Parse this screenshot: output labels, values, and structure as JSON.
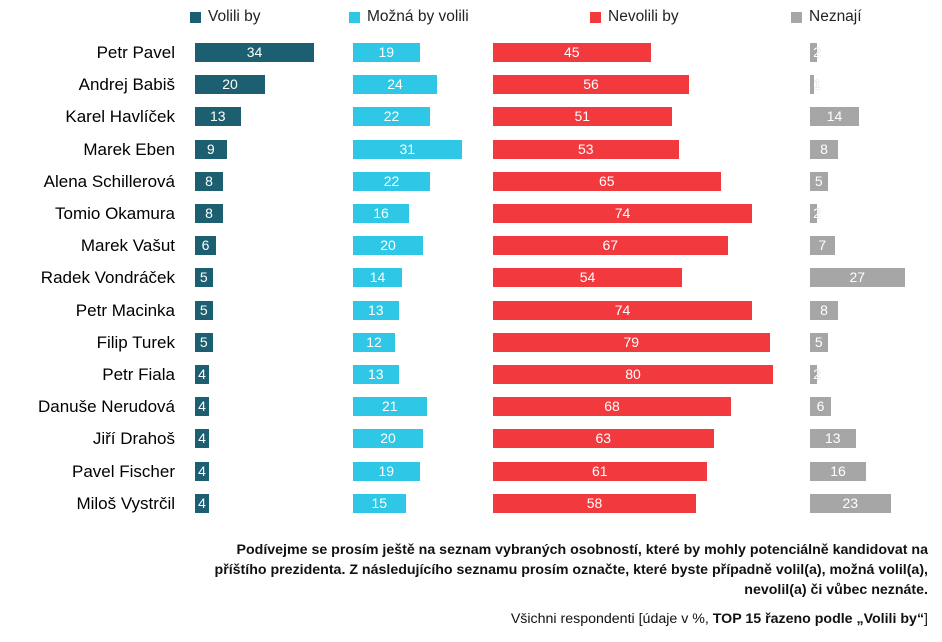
{
  "chart_data": {
    "type": "bar",
    "orientation": "horizontal",
    "layout": "side-by-side panels per series",
    "legend_position": "top",
    "grid": false,
    "categories": [
      "Petr Pavel",
      "Andrej Babiš",
      "Karel Havlíček",
      "Marek Eben",
      "Alena Schillerová",
      "Tomio Okamura",
      "Marek Vašut",
      "Radek Vondráček",
      "Petr Macinka",
      "Filip Turek",
      "Petr Fiala",
      "Danuše Nerudová",
      "Jiří Drahoš",
      "Pavel Fischer",
      "Miloš Vystrčil"
    ],
    "series": [
      {
        "name": "Volili by",
        "color": "#1b5f70",
        "values": [
          34,
          20,
          13,
          9,
          8,
          8,
          6,
          5,
          5,
          5,
          4,
          4,
          4,
          4,
          4
        ]
      },
      {
        "name": "Možná by volili",
        "color": "#2ec7e6",
        "values": [
          19,
          24,
          22,
          31,
          22,
          16,
          20,
          14,
          13,
          12,
          13,
          21,
          20,
          19,
          15
        ]
      },
      {
        "name": "Nevolili by",
        "color": "#f2393e",
        "values": [
          45,
          56,
          51,
          53,
          65,
          74,
          67,
          54,
          74,
          79,
          80,
          68,
          63,
          61,
          58
        ]
      },
      {
        "name": "Neznají",
        "color": "#a6a6a6",
        "values": [
          2,
          1,
          14,
          8,
          5,
          2,
          7,
          27,
          8,
          5,
          2,
          6,
          13,
          16,
          23
        ]
      }
    ]
  },
  "caption": {
    "line1": "Podívejme se prosím ještě na seznam vybraných osobností, které by mohly potenciálně kandidovat na",
    "line2": "příštího prezidenta. Z následujícího seznamu prosím označte, které byste případně volil(a), možná volil(a),",
    "line3": "nevolil(a) či vůbec neznáte."
  },
  "note": {
    "prefix": "Všichni respondenti [údaje v %, ",
    "bold": "TOP 15 řazeno podle „Volili by“",
    "suffix": "]"
  }
}
